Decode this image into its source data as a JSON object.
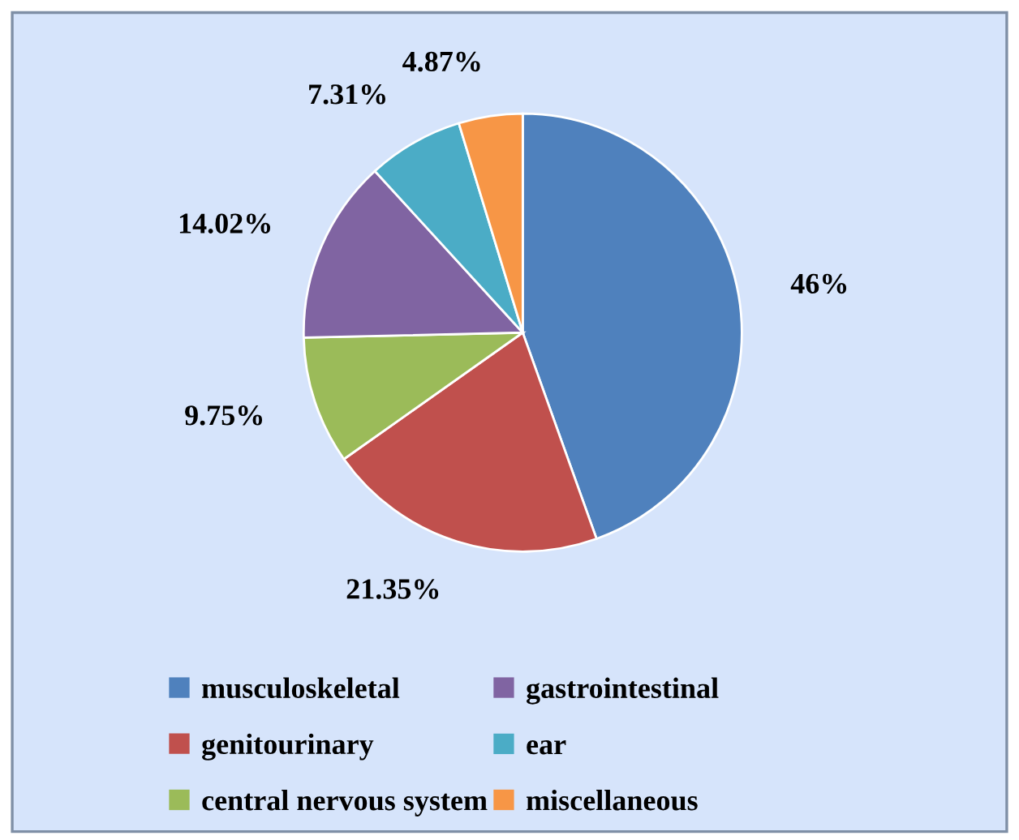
{
  "chart_data": {
    "type": "pie",
    "categories": [
      "musculoskeletal",
      "genitourinary",
      "central nervous system",
      "gastrointestinal",
      "ear",
      "miscellaneous"
    ],
    "values": [
      46,
      21.35,
      9.75,
      14.02,
      7.31,
      4.87
    ],
    "colors": [
      "#4f81bd",
      "#c0504d",
      "#9bbb59",
      "#8064a2",
      "#4bacc6",
      "#f79646"
    ],
    "value_labels": [
      "46%",
      "21.35%",
      "9.75%",
      "14.02%",
      "7.31%",
      "4.87%"
    ],
    "legend": "bottom"
  }
}
